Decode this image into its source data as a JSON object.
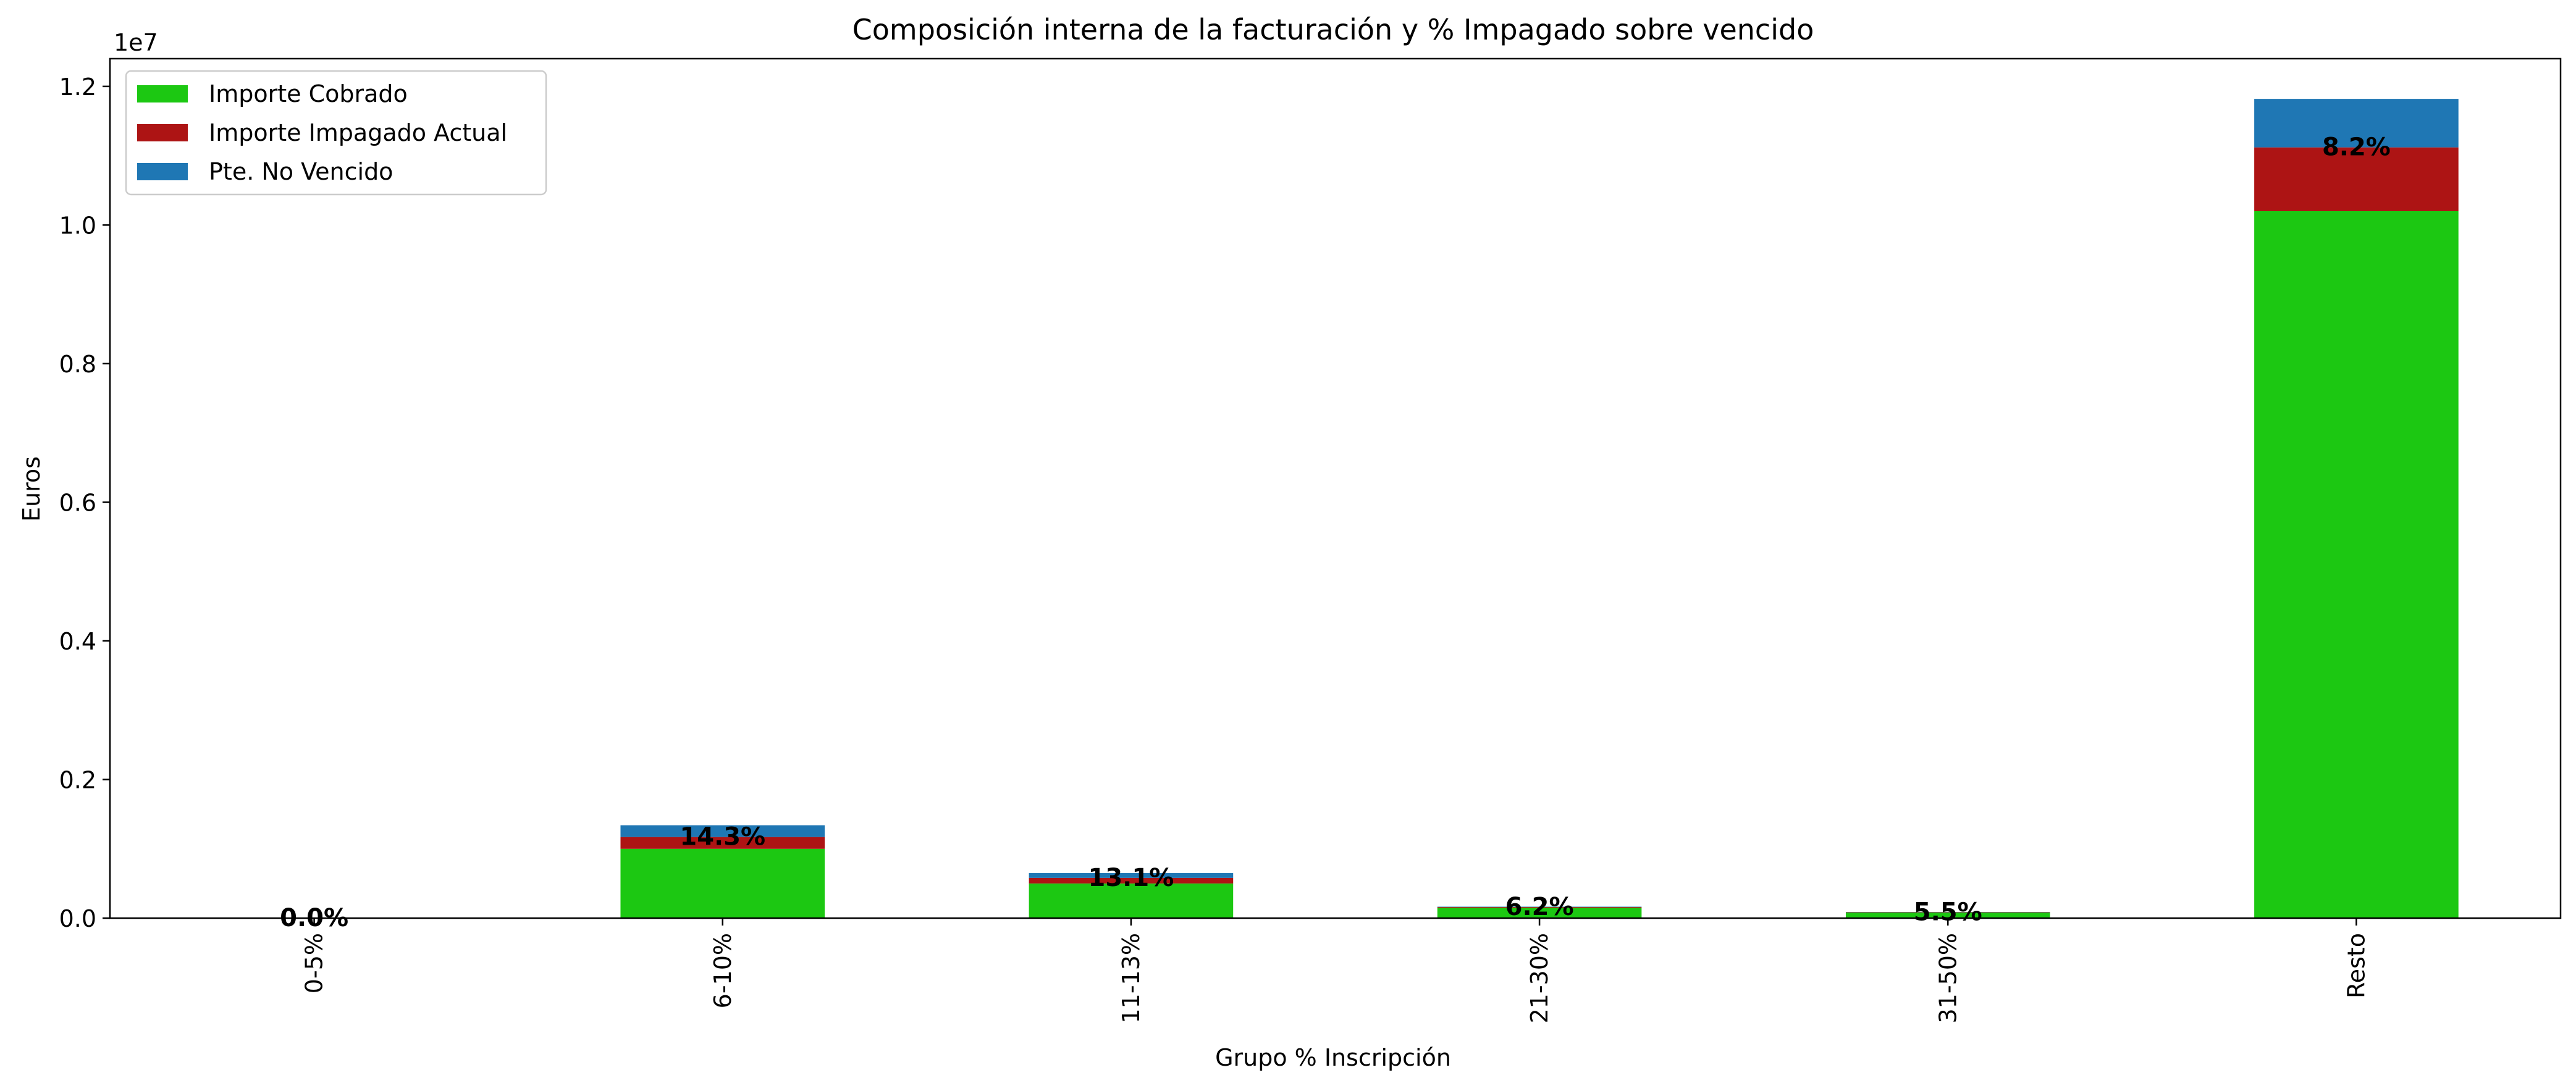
{
  "chart_data": {
    "type": "bar",
    "stacked": true,
    "title": "Composición interna de la facturación y % Impagado sobre vencido",
    "xlabel": "Grupo % Inscripción",
    "ylabel": "Euros",
    "y_offset_label": "1e7",
    "ylim": [
      0,
      12400000
    ],
    "yticks": [
      0,
      2000000,
      4000000,
      6000000,
      8000000,
      10000000,
      12000000
    ],
    "ytick_labels": [
      "0.0",
      "0.2",
      "0.4",
      "0.6",
      "0.8",
      "1.0",
      "1.2"
    ],
    "categories": [
      "0-5%",
      "6-10%",
      "11-13%",
      "21-30%",
      "31-50%",
      "Resto"
    ],
    "series": [
      {
        "name": "Importe Cobrado",
        "color": "#1cc812",
        "values": [
          0,
          1000000,
          500000,
          150000,
          80000,
          10200000
        ]
      },
      {
        "name": "Importe Impagado Actual",
        "color": "#ad1414",
        "values": [
          0,
          170000,
          80000,
          10000,
          5000,
          920000
        ]
      },
      {
        "name": "Pte. No Vencido",
        "color": "#1f77b4",
        "values": [
          0,
          170000,
          70000,
          5000,
          3000,
          700000
        ]
      }
    ],
    "annotations": [
      "0.0%",
      "14.3%",
      "13.1%",
      "6.2%",
      "5.5%",
      "8.2%"
    ],
    "legend_position": "upper-left",
    "grid": false
  }
}
